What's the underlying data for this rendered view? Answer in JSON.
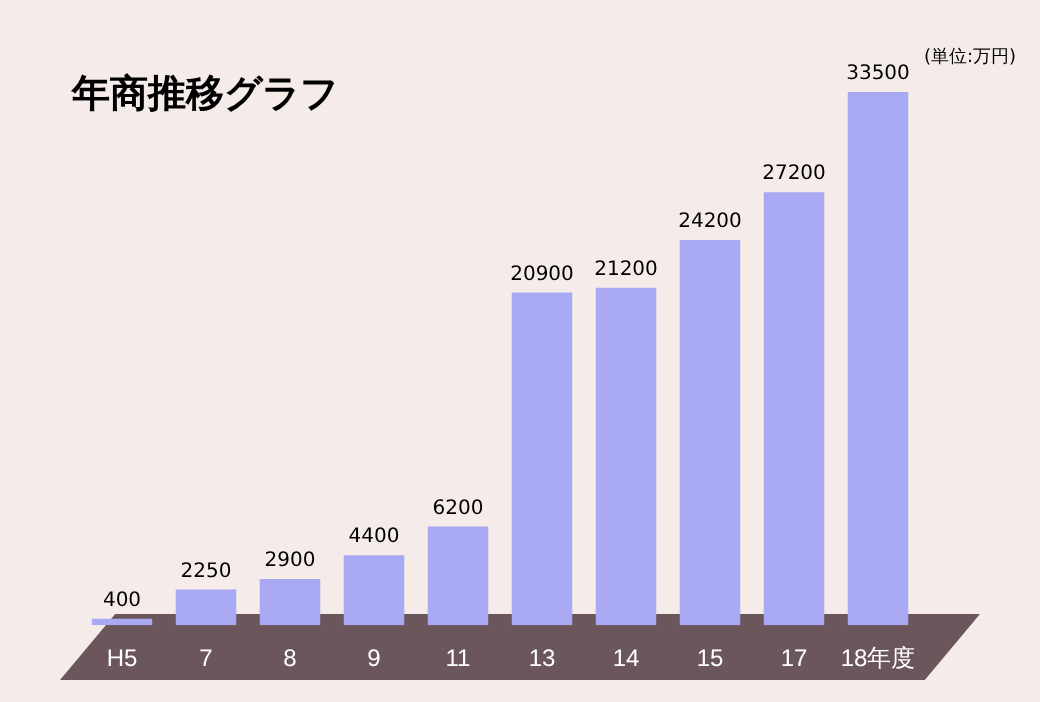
{
  "chart_data": {
    "type": "bar",
    "title": "年商推移グラフ",
    "categories": [
      "H5",
      "7",
      "8",
      "9",
      "11",
      "13",
      "14",
      "15",
      "17",
      "18年度"
    ],
    "values": [
      400,
      2250,
      2900,
      4400,
      6200,
      20900,
      21200,
      24200,
      27200,
      33500
    ],
    "color": "#a9a9f3",
    "data_labels": true,
    "grid": false,
    "legend": false,
    "annotations": [
      "(単位:万円)"
    ]
  }
}
